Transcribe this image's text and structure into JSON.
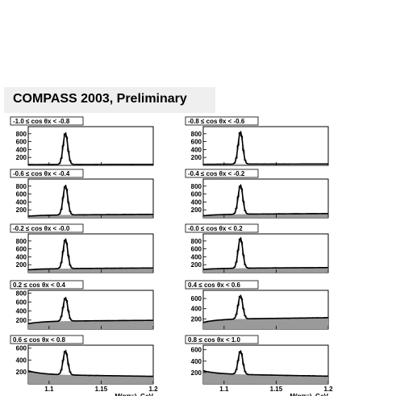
{
  "header": {
    "title": "COMPASS 2003, Preliminary"
  },
  "chart_data": {
    "type": "line",
    "xlabel": "M(pπ⁻), GeV",
    "xlim": [
      1.08,
      1.2
    ],
    "x_ticks": [
      "1.1",
      "1.15",
      "1.2"
    ],
    "colors": {
      "data": "#000000",
      "fit": "#000000",
      "background_fill": "#9a9a9a"
    },
    "peak_position": 1.1157,
    "panels": [
      {
        "label": "-1.0 ≤ cos θx < -0.8",
        "y_ticks": [
          "200",
          "400",
          "600",
          "800"
        ],
        "ylim": [
          0,
          980
        ],
        "peak": 820,
        "background": [
          20,
          20,
          25
        ]
      },
      {
        "label": "-0.8 ≤ cos θx < -0.6",
        "y_ticks": [
          "200",
          "400",
          "600",
          "800"
        ],
        "ylim": [
          0,
          980
        ],
        "peak": 850,
        "background": [
          25,
          30,
          35
        ]
      },
      {
        "label": "-0.6 ≤ cos θx < -0.4",
        "y_ticks": [
          "200",
          "400",
          "600",
          "800"
        ],
        "ylim": [
          0,
          980
        ],
        "peak": 820,
        "background": [
          40,
          70,
          90
        ]
      },
      {
        "label": "-0.4 ≤ cos θx < -0.2",
        "y_ticks": [
          "200",
          "400",
          "600",
          "800"
        ],
        "ylim": [
          0,
          980
        ],
        "peak": 830,
        "background": [
          50,
          90,
          110
        ]
      },
      {
        "label": "-0.2 ≤ cos θx < -0.0",
        "y_ticks": [
          "200",
          "400",
          "600",
          "800"
        ],
        "ylim": [
          0,
          980
        ],
        "peak": 850,
        "background": [
          70,
          100,
          120
        ]
      },
      {
        "label": "-0.0 ≤ cos θx < 0.2",
        "y_ticks": [
          "200",
          "400",
          "600",
          "800"
        ],
        "ylim": [
          0,
          980
        ],
        "peak": 880,
        "background": [
          80,
          110,
          130
        ]
      },
      {
        "label": "0.2 ≤ cos θx < 0.4",
        "y_ticks": [
          "200",
          "400",
          "600",
          "800"
        ],
        "ylim": [
          0,
          860
        ],
        "peak": 700,
        "background": [
          120,
          180,
          200
        ]
      },
      {
        "label": "0.4 ≤ cos θx < 0.6",
        "y_ticks": [
          "200",
          "400",
          "600"
        ],
        "ylim": [
          0,
          760
        ],
        "peak": 660,
        "background": [
          130,
          200,
          230
        ]
      },
      {
        "label": "0.6 ≤ cos θx < 0.8",
        "y_ticks": [
          "200",
          "400",
          "600"
        ],
        "ylim": [
          0,
          650
        ],
        "peak": 560,
        "background": [
          220,
          150,
          120
        ]
      },
      {
        "label": "0.8 ≤ cos θx < 1.0",
        "y_ticks": [
          "200",
          "400",
          "600"
        ],
        "ylim": [
          0,
          680
        ],
        "peak": 580,
        "background": [
          230,
          170,
          130
        ]
      }
    ]
  }
}
